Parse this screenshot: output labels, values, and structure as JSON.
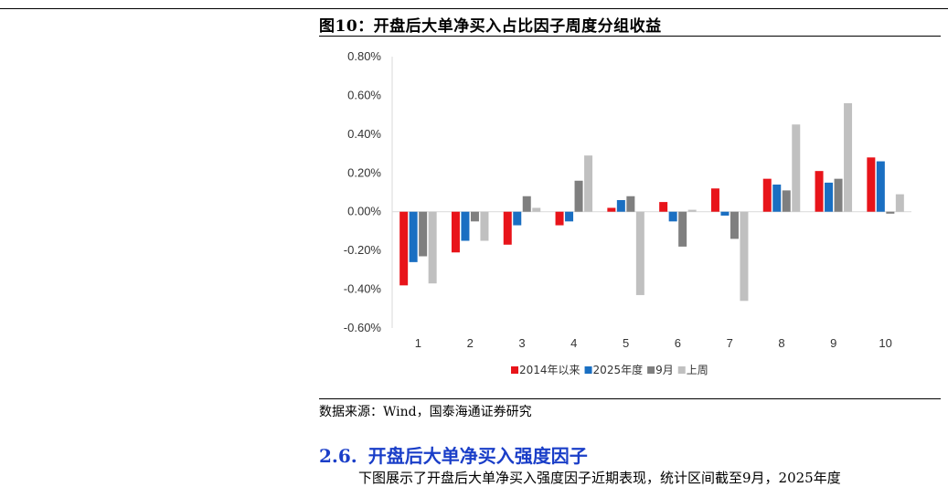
{
  "figure": {
    "title": "图10：开盘后大单净买入占比因子周度分组收益",
    "source": "数据来源：Wind，国泰海通证券研究"
  },
  "section": {
    "number": "2.6.",
    "title": "开盘后大单净买入强度因子",
    "body_fragment": "下图展示了开盘后大单净买入强度因子近期表现，统计区间截至9月，2025年度"
  },
  "chart_data": {
    "type": "bar",
    "categories": [
      "1",
      "2",
      "3",
      "4",
      "5",
      "6",
      "7",
      "8",
      "9",
      "10"
    ],
    "ylim": [
      -0.006,
      0.008
    ],
    "yticks": [
      "0.80%",
      "0.60%",
      "0.40%",
      "0.20%",
      "0.00%",
      "-0.20%",
      "-0.40%",
      "-0.60%"
    ],
    "ytick_values": [
      0.008,
      0.006,
      0.004,
      0.002,
      0.0,
      -0.002,
      -0.004,
      -0.006
    ],
    "legend_position": "bottom",
    "grid": false,
    "series": [
      {
        "name": "2014年以来",
        "color": "#e8141a",
        "values": [
          -0.0038,
          -0.0021,
          -0.0017,
          -0.0007,
          0.0002,
          0.0005,
          0.0012,
          0.0017,
          0.0021,
          0.0028
        ]
      },
      {
        "name": "2025年度",
        "color": "#1a6fc2",
        "values": [
          -0.0026,
          -0.0015,
          -0.0007,
          -0.0005,
          0.0006,
          -0.0005,
          -0.0002,
          0.0014,
          0.0015,
          0.0026
        ]
      },
      {
        "name": "9月",
        "color": "#7f7f7f",
        "values": [
          -0.0023,
          -0.0005,
          0.0008,
          0.0016,
          0.0008,
          -0.0018,
          -0.0014,
          0.0011,
          0.0017,
          -0.0001
        ]
      },
      {
        "name": "上周",
        "color": "#c0c0c0",
        "values": [
          -0.0037,
          -0.0015,
          0.0002,
          0.0029,
          -0.0043,
          0.0001,
          -0.0046,
          0.0045,
          0.0056,
          0.0009
        ]
      }
    ]
  }
}
